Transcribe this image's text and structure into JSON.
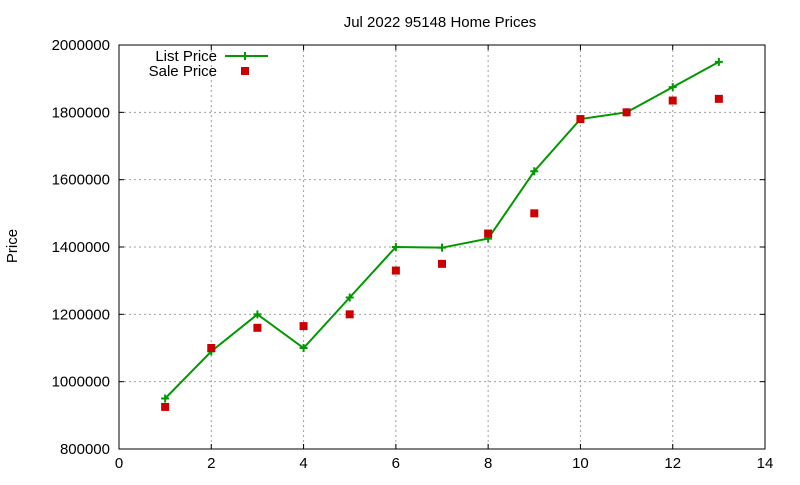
{
  "chart_data": {
    "type": "line",
    "title": "Jul 2022 95148 Home Prices",
    "xlabel": "",
    "ylabel": "Price",
    "xlim": [
      0,
      14
    ],
    "ylim": [
      800000,
      2000000
    ],
    "xticks": [
      "0",
      "2",
      "4",
      "6",
      "8",
      "10",
      "12",
      "14"
    ],
    "yticks": [
      "800000",
      "1000000",
      "1200000",
      "1400000",
      "1600000",
      "1800000",
      "2000000"
    ],
    "grid": true,
    "legend_position": "top-left",
    "series": [
      {
        "name": "List Price",
        "style": "line+cross",
        "color": "#009900",
        "x": [
          1,
          2,
          3,
          4,
          5,
          6,
          7,
          8,
          9,
          10,
          11,
          12,
          13
        ],
        "y": [
          950000,
          1090000,
          1200000,
          1100000,
          1250000,
          1400000,
          1398000,
          1425000,
          1625000,
          1780000,
          1800000,
          1875000,
          1950000
        ]
      },
      {
        "name": "Sale Price",
        "style": "square",
        "color": "#cc0000",
        "x": [
          1,
          2,
          3,
          4,
          5,
          6,
          7,
          8,
          9,
          10,
          11,
          12,
          13
        ],
        "y": [
          925000,
          1100000,
          1160000,
          1165000,
          1200000,
          1330000,
          1350000,
          1440000,
          1500000,
          1780000,
          1800000,
          1835000,
          1840000
        ]
      }
    ]
  }
}
